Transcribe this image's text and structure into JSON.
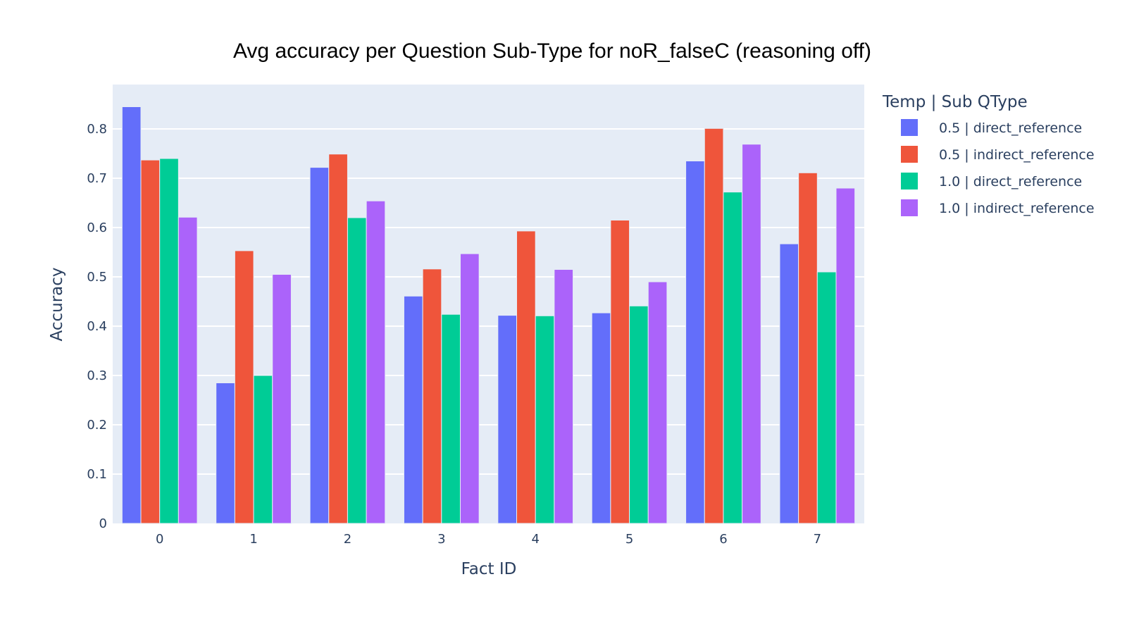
{
  "chart_data": {
    "type": "bar",
    "title": "Avg accuracy per Question Sub-Type for noR_falseC (reasoning off)",
    "xlabel": "Fact ID",
    "ylabel": "Accuracy",
    "categories": [
      "0",
      "1",
      "2",
      "3",
      "4",
      "5",
      "6",
      "7"
    ],
    "ylim": [
      0,
      0.89
    ],
    "yticks": [
      0,
      0.1,
      0.2,
      0.3,
      0.4,
      0.5,
      0.6,
      0.7,
      0.8
    ],
    "ytick_labels": [
      "0",
      "0.1",
      "0.2",
      "0.3",
      "0.4",
      "0.5",
      "0.6",
      "0.7",
      "0.8"
    ],
    "grid": true,
    "legend_title": "Temp | Sub QType",
    "legend_position": "right",
    "series": [
      {
        "name": "0.5 | direct_reference",
        "color": "#636efa",
        "values": [
          0.845,
          0.285,
          0.722,
          0.461,
          0.422,
          0.427,
          0.735,
          0.567
        ]
      },
      {
        "name": "0.5 | indirect_reference",
        "color": "#ef553b",
        "values": [
          0.737,
          0.553,
          0.749,
          0.516,
          0.593,
          0.615,
          0.801,
          0.711
        ]
      },
      {
        "name": "1.0 | direct_reference",
        "color": "#00cc96",
        "values": [
          0.74,
          0.3,
          0.62,
          0.424,
          0.421,
          0.441,
          0.672,
          0.51
        ]
      },
      {
        "name": "1.0 | indirect_reference",
        "color": "#ab63fa",
        "values": [
          0.621,
          0.505,
          0.654,
          0.547,
          0.515,
          0.49,
          0.769,
          0.68
        ]
      }
    ]
  }
}
